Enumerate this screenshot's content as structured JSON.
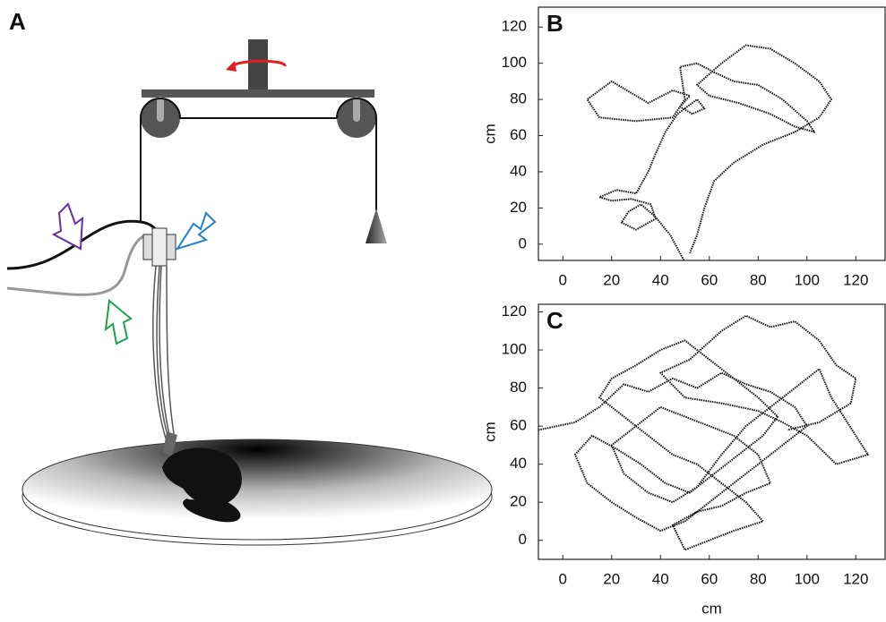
{
  "figure": {
    "panel_a_label": "A"
  },
  "chart_data": [
    {
      "type": "line",
      "label": "B",
      "ylabel": "cm",
      "xlim": [
        -10,
        132
      ],
      "ylim": [
        -9,
        131
      ],
      "xticks": [
        0,
        20,
        40,
        60,
        80,
        100,
        120
      ],
      "yticks": [
        0,
        20,
        40,
        60,
        80,
        100,
        120
      ],
      "series": [
        {
          "color": "#111111",
          "x": [
            50,
            44,
            38,
            32,
            27,
            24,
            30,
            38,
            36,
            28,
            20,
            15,
            22,
            30,
            35,
            38,
            42,
            47,
            55,
            58,
            53,
            48,
            52,
            45,
            35,
            20,
            10,
            15,
            30,
            45,
            50,
            48,
            55,
            62,
            70,
            80,
            90,
            100,
            103,
            95,
            85,
            72,
            60,
            55,
            65,
            75,
            85,
            95,
            105,
            110,
            105,
            95,
            82,
            70,
            62,
            58,
            55,
            52
          ],
          "values": [
            -10,
            5,
            15,
            22,
            18,
            12,
            8,
            14,
            22,
            25,
            24,
            26,
            30,
            28,
            40,
            50,
            62,
            72,
            80,
            75,
            72,
            76,
            82,
            85,
            78,
            90,
            80,
            70,
            68,
            70,
            80,
            98,
            100,
            95,
            90,
            88,
            80,
            68,
            62,
            65,
            72,
            78,
            82,
            88,
            100,
            110,
            108,
            100,
            90,
            80,
            70,
            62,
            55,
            45,
            35,
            20,
            5,
            -5
          ]
        }
      ]
    },
    {
      "type": "line",
      "label": "C",
      "xlabel": "cm",
      "ylabel": "cm",
      "xlim": [
        -10,
        132
      ],
      "ylim": [
        -10,
        124
      ],
      "xticks": [
        0,
        20,
        40,
        60,
        80,
        100,
        120
      ],
      "yticks": [
        0,
        20,
        40,
        60,
        80,
        100,
        120
      ],
      "series": [
        {
          "color": "#111111",
          "x": [
            -10,
            5,
            15,
            25,
            35,
            45,
            55,
            65,
            75,
            85,
            95,
            100,
            90,
            80,
            70,
            60,
            50,
            40,
            30,
            20,
            10,
            5,
            12,
            22,
            32,
            42,
            52,
            62,
            72,
            82,
            88,
            80,
            70,
            60,
            50,
            40,
            30,
            20,
            15,
            25,
            35,
            45,
            55,
            65,
            75,
            82,
            70,
            60,
            50,
            45,
            55,
            65,
            75,
            85,
            80,
            70,
            60,
            50,
            40,
            30,
            20,
            25,
            35,
            45,
            55,
            65,
            75,
            85,
            95,
            105,
            110,
            115,
            125,
            112,
            100,
            90,
            80,
            65,
            50,
            40,
            52,
            65,
            75,
            85,
            95,
            105,
            112,
            120,
            118,
            105,
            92
          ],
          "values": [
            58,
            62,
            70,
            82,
            78,
            85,
            80,
            88,
            82,
            78,
            70,
            60,
            50,
            40,
            30,
            20,
            10,
            5,
            12,
            20,
            30,
            45,
            55,
            48,
            40,
            30,
            25,
            35,
            45,
            55,
            65,
            75,
            85,
            95,
            105,
            100,
            92,
            85,
            75,
            65,
            55,
            45,
            40,
            30,
            20,
            10,
            5,
            0,
            -5,
            8,
            15,
            18,
            25,
            30,
            45,
            55,
            60,
            65,
            70,
            60,
            50,
            35,
            25,
            20,
            28,
            45,
            60,
            70,
            80,
            90,
            75,
            65,
            45,
            40,
            55,
            62,
            68,
            72,
            75,
            88,
            95,
            110,
            118,
            112,
            115,
            105,
            92,
            85,
            72,
            62,
            58
          ]
        }
      ]
    }
  ]
}
